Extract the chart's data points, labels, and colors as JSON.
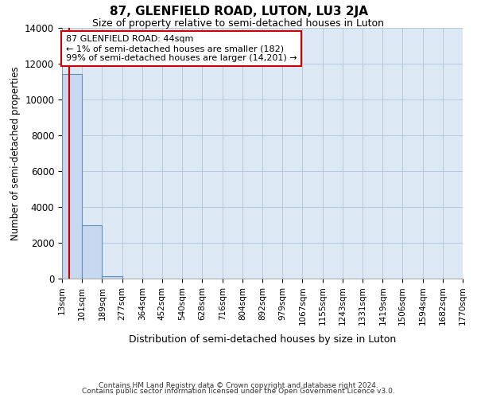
{
  "title": "87, GLENFIELD ROAD, LUTON, LU3 2JA",
  "subtitle": "Size of property relative to semi-detached houses in Luton",
  "xlabel": "Distribution of semi-detached houses by size in Luton",
  "ylabel": "Number of semi-detached properties",
  "bar_values": [
    11400,
    3000,
    150,
    0,
    0,
    0,
    0,
    0,
    0,
    0,
    0,
    0,
    0,
    0,
    0,
    0,
    0,
    0,
    0,
    0
  ],
  "bin_edges": [
    13,
    101,
    189,
    277,
    364,
    452,
    540,
    628,
    716,
    804,
    892,
    979,
    1067,
    1155,
    1243,
    1331,
    1419,
    1506,
    1594,
    1682,
    1770
  ],
  "tick_labels": [
    "13sqm",
    "101sqm",
    "189sqm",
    "277sqm",
    "364sqm",
    "452sqm",
    "540sqm",
    "628sqm",
    "716sqm",
    "804sqm",
    "892sqm",
    "979sqm",
    "1067sqm",
    "1155sqm",
    "1243sqm",
    "1331sqm",
    "1419sqm",
    "1506sqm",
    "1594sqm",
    "1682sqm",
    "1770sqm"
  ],
  "bar_color": "#c8d8ee",
  "bar_edgecolor": "#6090c0",
  "grid_color": "#b8c8dc",
  "property_size": 44,
  "annotation_line1": "87 GLENFIELD ROAD: 44sqm",
  "annotation_line2": "← 1% of semi-detached houses are smaller (182)",
  "annotation_line3": "99% of semi-detached houses are larger (14,201) →",
  "red_line_color": "#cc0000",
  "annotation_box_facecolor": "#ffffff",
  "annotation_box_edgecolor": "#cc0000",
  "ylim": [
    0,
    14000
  ],
  "yticks": [
    0,
    2000,
    4000,
    6000,
    8000,
    10000,
    12000,
    14000
  ],
  "footer_line1": "Contains HM Land Registry data © Crown copyright and database right 2024.",
  "footer_line2": "Contains public sector information licensed under the Open Government Licence v3.0.",
  "fig_background_color": "#ffffff",
  "plot_bg_color": "#dce8f4"
}
